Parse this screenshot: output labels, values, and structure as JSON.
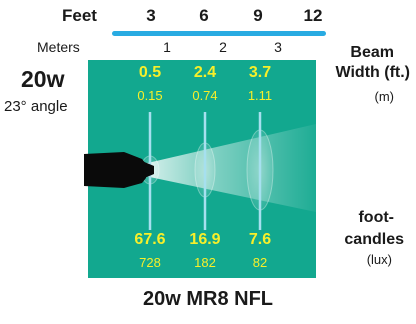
{
  "scale": {
    "feet_label": "Feet",
    "feet": [
      "3",
      "6",
      "9",
      "12"
    ],
    "meters_label": "Meters",
    "meters": [
      "1",
      "2",
      "3"
    ]
  },
  "lamp": {
    "wattage": "20w",
    "angle": "23° angle"
  },
  "beam_width": {
    "title_line1": "Beam",
    "title_line2": "Width (ft.)",
    "unit": "(m)",
    "feet": [
      "0.5",
      "2.4",
      "3.7"
    ],
    "meters": [
      "0.15",
      "0.74",
      "1.11"
    ]
  },
  "footcandles": {
    "title_line1": "foot-",
    "title_line2": "candles",
    "unit": "(lux)",
    "fc": [
      "67.6",
      "16.9",
      "7.6"
    ],
    "lux": [
      "728",
      "182",
      "82"
    ]
  },
  "footer": {
    "product": "20w MR8 NFL"
  },
  "colors": {
    "panel": "#12a88f",
    "accent_bar": "#29abe2",
    "value_text": "#f7ef2a"
  }
}
